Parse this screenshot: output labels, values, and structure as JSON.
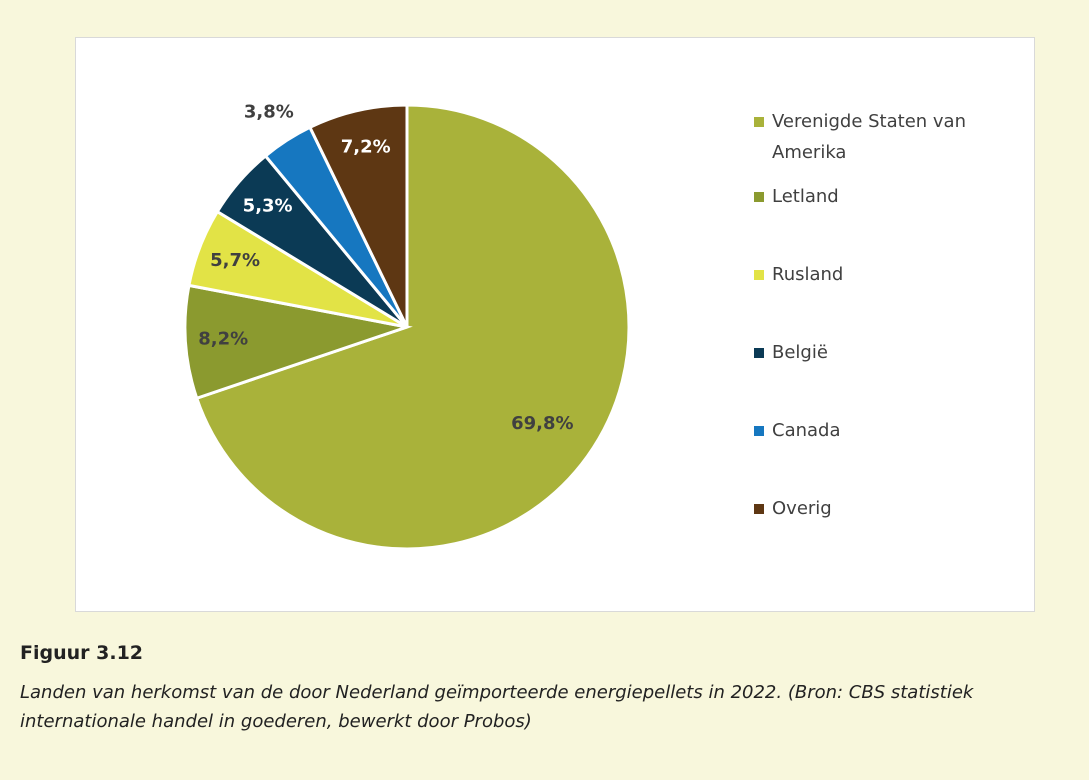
{
  "chart_data": {
    "type": "pie",
    "categories": [
      "Verenigde Staten van Amerika",
      "Letland",
      "Rusland",
      "België",
      "Canada",
      "Overig"
    ],
    "values": [
      69.8,
      8.2,
      5.7,
      5.3,
      3.8,
      7.2
    ],
    "value_labels": [
      "69,8%",
      "8,2%",
      "5,7%",
      "5,3%",
      "3,8%",
      "7,2%"
    ],
    "colors": [
      "#a9b23a",
      "#8b9a2f",
      "#e2e346",
      "#0b3a55",
      "#1677c0",
      "#5e3713"
    ],
    "legend": "right"
  },
  "caption": {
    "label": "Figuur 3.12",
    "text": "Landen van herkomst van de door Nederland geïmporteerde energiepellets in 2022. (Bron: CBS statistiek internationale handel in goederen, bewerkt door Probos)"
  }
}
